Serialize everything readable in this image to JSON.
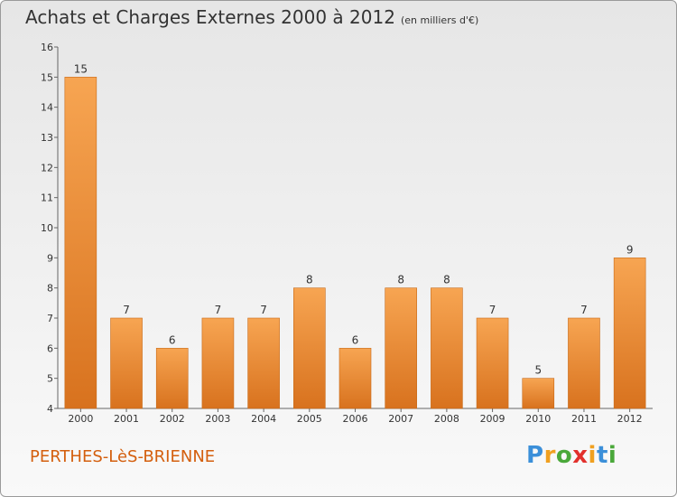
{
  "chart_data": {
    "type": "bar",
    "title": "Achats et Charges Externes 2000 à 2012",
    "subtitle": "(en milliers d'€)",
    "categories": [
      "2000",
      "2001",
      "2002",
      "2003",
      "2004",
      "2005",
      "2006",
      "2007",
      "2008",
      "2009",
      "2010",
      "2011",
      "2012"
    ],
    "values": [
      15,
      7,
      6,
      7,
      7,
      8,
      6,
      8,
      8,
      7,
      5,
      7,
      9
    ],
    "ylim": [
      4,
      16
    ],
    "yticks": [
      4,
      5,
      6,
      7,
      8,
      9,
      10,
      11,
      12,
      13,
      14,
      15,
      16
    ],
    "grid": false,
    "legend": "none",
    "bar_color": "#f0912e",
    "bar_color_light": "#f7a552",
    "bar_color_dark": "#d8721e"
  },
  "place_name": "PERTHES-LèS-BRIENNE",
  "logo": {
    "letters": [
      "P",
      "r",
      "o",
      "x",
      "i",
      "t",
      "i"
    ],
    "colors": [
      "#3b8fd9",
      "#f0a020",
      "#4aa83a",
      "#e2302c",
      "#f0a020",
      "#3b8fd9",
      "#4aa83a"
    ]
  }
}
